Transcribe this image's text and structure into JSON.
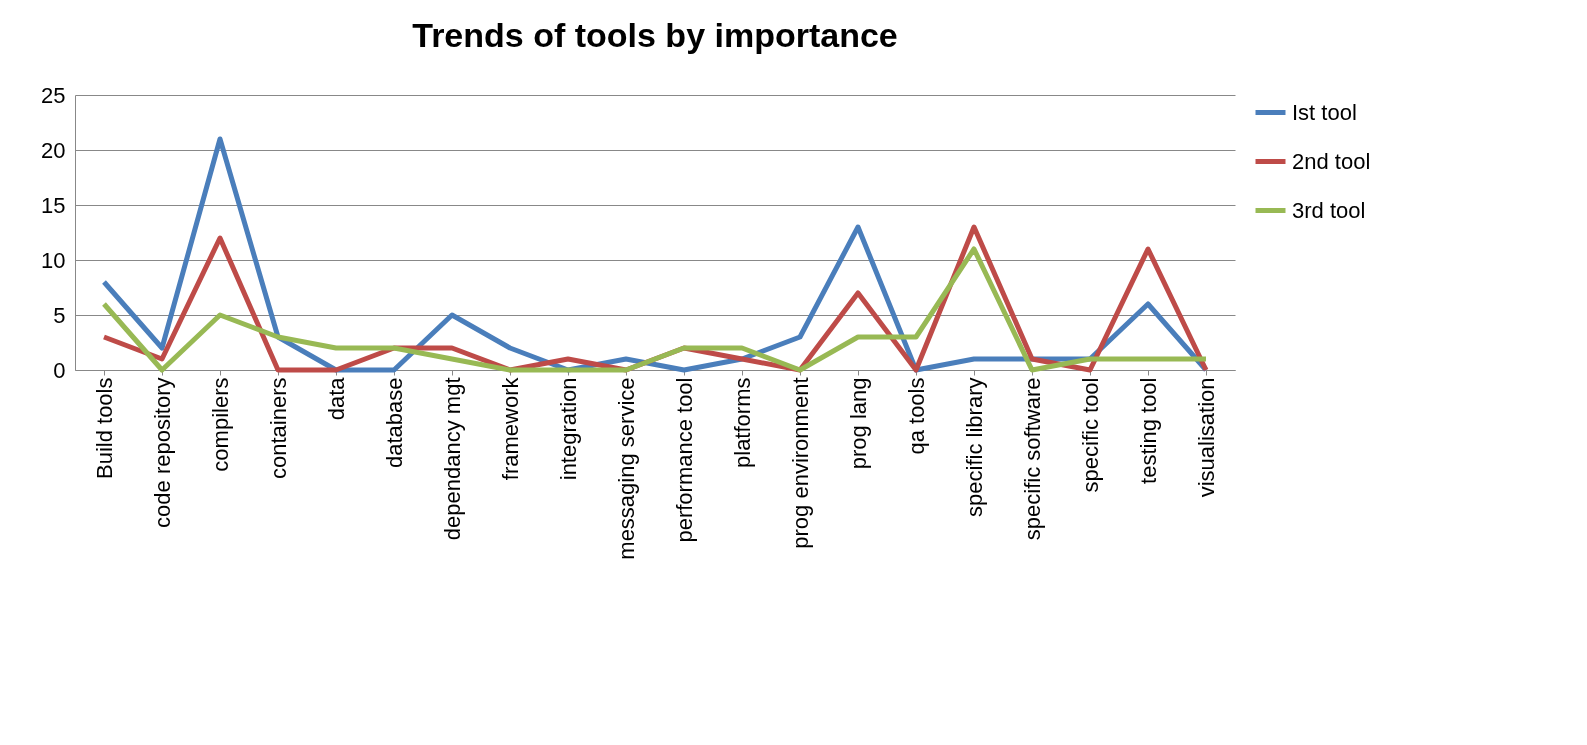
{
  "chart_data": {
    "type": "line",
    "title": "Trends of tools by importance",
    "categories": [
      "Build tools",
      "code repository",
      "compilers",
      "containers",
      "data",
      "database",
      "dependancy mgt",
      "framework",
      "integration",
      "messaging service",
      "performance tool",
      "platforms",
      "prog environment",
      "prog lang",
      "qa tools",
      "specific library",
      "specific software",
      "specific tool",
      "testing tool",
      "visualisation"
    ],
    "series": [
      {
        "name": "Ist tool",
        "color": "#4a7ebb",
        "values": [
          8,
          2,
          21,
          3,
          0,
          0,
          5,
          2,
          0,
          1,
          0,
          1,
          3,
          13,
          0,
          1,
          1,
          1,
          6,
          0
        ]
      },
      {
        "name": "2nd tool",
        "color": "#be4b48",
        "values": [
          3,
          1,
          12,
          0,
          0,
          2,
          2,
          0,
          1,
          0,
          2,
          1,
          0,
          7,
          0,
          13,
          1,
          0,
          11,
          0
        ]
      },
      {
        "name": "3rd tool",
        "color": "#98b954",
        "values": [
          6,
          0,
          5,
          3,
          2,
          2,
          1,
          0,
          0,
          0,
          2,
          2,
          0,
          3,
          3,
          11,
          0,
          1,
          1,
          1
        ]
      }
    ],
    "ylim": [
      0,
      25
    ],
    "yticks": [
      0,
      5,
      10,
      15,
      20,
      25
    ],
    "grid": "y",
    "legend": "right",
    "marker": "none",
    "line_style": "solid"
  }
}
